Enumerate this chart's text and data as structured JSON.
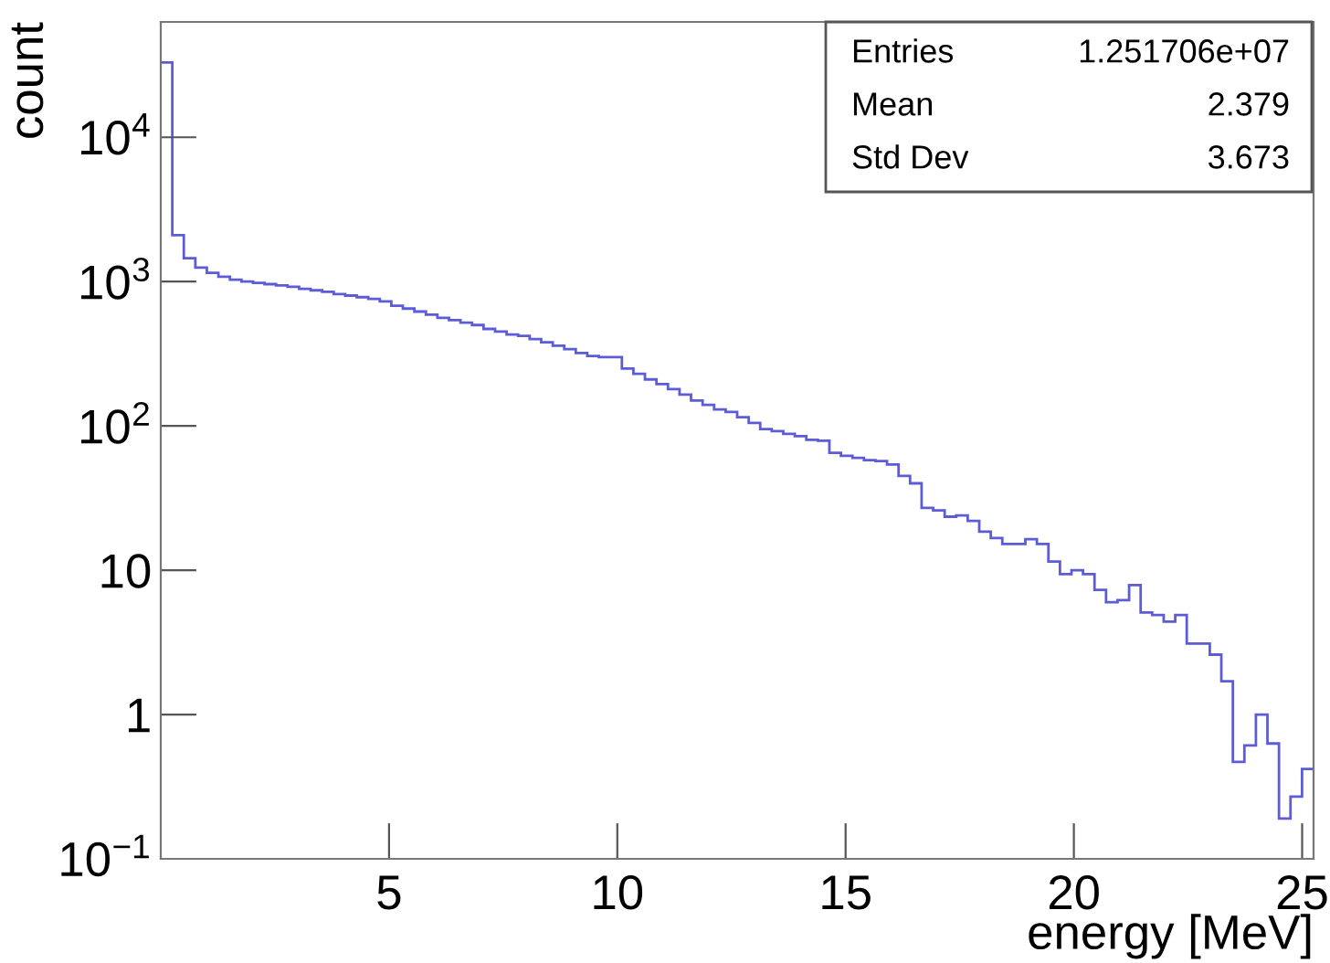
{
  "chart_data": {
    "type": "histogram",
    "xlabel": "energy [MeV]",
    "ylabel": "count",
    "color": "#5c5cd6",
    "log": "y",
    "annotations": [
      "Entries",
      "1.251706e+07",
      "Mean",
      "2.379",
      "Std Dev",
      "3.673"
    ],
    "bins": [
      0,
      0.2525,
      0.505,
      0.7575,
      1.01,
      1.2625,
      1.515,
      1.7675,
      2.02,
      2.2725,
      2.525,
      2.7775,
      3.03,
      3.2825,
      3.535,
      3.7875,
      4.04,
      4.2925,
      4.545,
      4.7975,
      5.05,
      5.3025,
      5.555,
      5.8075,
      6.06,
      6.3125,
      6.565,
      6.8175,
      7.07,
      7.3225,
      7.575,
      7.8275,
      8.08,
      8.3325,
      8.585,
      8.8375,
      9.09,
      9.3425,
      9.595,
      9.8475,
      10.1,
      10.3525,
      10.605,
      10.8575,
      11.11,
      11.3625,
      11.615,
      11.8675,
      12.12,
      12.3725,
      12.625,
      12.8775,
      13.13,
      13.3825,
      13.635,
      13.8875,
      14.14,
      14.3925,
      14.645,
      14.8975,
      15.15,
      15.4025,
      15.655,
      15.9075,
      16.16,
      16.4125,
      16.665,
      16.9175,
      17.17,
      17.4225,
      17.675,
      17.9275,
      18.18,
      18.4325,
      18.685,
      18.9375,
      19.19,
      19.4425,
      19.695,
      19.9475,
      20.2,
      20.4525,
      20.705,
      20.9575,
      21.21,
      21.4625,
      21.715,
      21.9675,
      22.22,
      22.4725,
      22.725,
      22.9775,
      23.23,
      23.4825,
      23.735,
      23.9875,
      24.24,
      24.4925,
      24.745,
      24.9975,
      25.25
    ],
    "values": [
      33000,
      2100,
      1450,
      1250,
      1150,
      1080,
      1030,
      1000,
      980,
      960,
      940,
      920,
      890,
      870,
      850,
      820,
      800,
      780,
      760,
      730,
      680,
      650,
      620,
      590,
      560,
      540,
      520,
      500,
      470,
      450,
      430,
      420,
      400,
      380,
      360,
      340,
      320,
      305,
      300,
      300,
      250,
      230,
      210,
      195,
      180,
      165,
      150,
      140,
      130,
      125,
      115,
      105,
      95,
      92,
      88,
      85,
      80,
      79,
      65,
      62,
      60,
      58,
      57,
      54,
      45,
      40,
      27,
      26,
      23.5,
      24,
      22,
      18.5,
      16.7,
      15.2,
      15.2,
      16.4,
      15.2,
      11.5,
      9.4,
      10,
      9.4,
      7.3,
      6.0,
      6.2,
      7.9,
      5.1,
      4.9,
      4.4,
      4.9,
      3.1,
      3.1,
      2.6,
      1.7,
      0.47,
      0.61,
      1.0,
      0.63,
      0.19,
      0.27,
      0.42
    ],
    "xlim": [
      0,
      25.25
    ],
    "xticks": [
      5,
      10,
      15,
      20,
      25
    ],
    "ylim": [
      0.1,
      63000
    ],
    "yticks": [
      {
        "value": 0.1,
        "label": "10$^{−1}$"
      },
      1,
      10,
      {
        "value": 100,
        "label": "10$^{2}$"
      },
      {
        "value": 1000,
        "label": "10$^{3}$"
      },
      {
        "value": 10000,
        "label": "10$^{4}$"
      }
    ]
  }
}
